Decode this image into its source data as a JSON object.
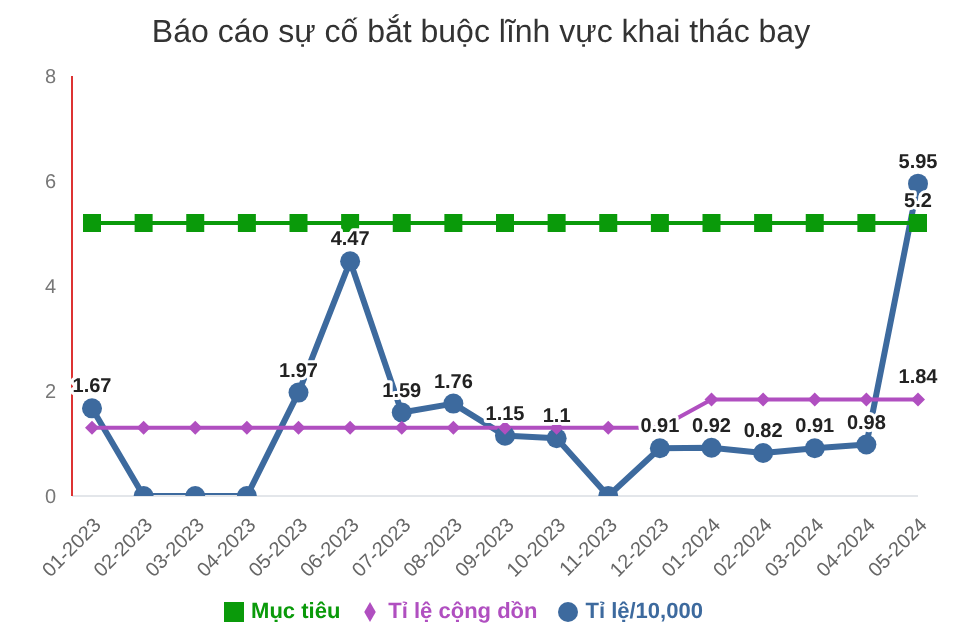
{
  "chart_data": {
    "type": "line",
    "title": "Báo cáo sự cố bắt buộc lĩnh vực khai thác bay",
    "categories": [
      "01-2023",
      "02-2023",
      "03-2023",
      "04-2023",
      "05-2023",
      "06-2023",
      "07-2023",
      "08-2023",
      "09-2023",
      "10-2023",
      "11-2023",
      "12-2023",
      "01-2024",
      "02-2024",
      "03-2024",
      "04-2024",
      "05-2024"
    ],
    "series": [
      {
        "name": "Tỉ lệ/10,000",
        "color": "#3d6a9e",
        "marker": "circle",
        "values": [
          1.67,
          0,
          0,
          0,
          1.97,
          4.47,
          1.59,
          1.76,
          1.15,
          1.1,
          0,
          0.91,
          0.92,
          0.82,
          0.91,
          0.98,
          5.95
        ],
        "value_labels": [
          "1.67",
          null,
          null,
          null,
          "1.97",
          "4.47",
          "1.59",
          "1.76",
          "1.15",
          "1.1",
          null,
          "0.91",
          "0.92",
          "0.82",
          "0.91",
          "0.98",
          "5.95"
        ]
      },
      {
        "name": "Tỉ lệ cộng dồn",
        "color": "#b04fc0",
        "marker": "diamond",
        "values": [
          1.3,
          1.3,
          1.3,
          1.3,
          1.3,
          1.3,
          1.3,
          1.3,
          1.3,
          1.3,
          1.3,
          1.3,
          1.84,
          1.84,
          1.84,
          1.84,
          1.84
        ],
        "value_labels": [
          null,
          null,
          null,
          null,
          null,
          null,
          null,
          null,
          null,
          null,
          null,
          null,
          null,
          null,
          null,
          null,
          "1.84"
        ]
      },
      {
        "name": "Mục tiêu",
        "color": "#0a9a0a",
        "marker": "square",
        "values": [
          5.2,
          5.2,
          5.2,
          5.2,
          5.2,
          5.2,
          5.2,
          5.2,
          5.2,
          5.2,
          5.2,
          5.2,
          5.2,
          5.2,
          5.2,
          5.2,
          5.2
        ],
        "value_labels": [
          null,
          null,
          null,
          null,
          null,
          null,
          null,
          null,
          null,
          null,
          null,
          null,
          null,
          null,
          null,
          null,
          "5.2"
        ]
      }
    ],
    "ylim": [
      0,
      8
    ],
    "yticks": [
      0,
      2,
      4,
      6,
      8
    ],
    "grid": false,
    "legend": "bottom"
  }
}
